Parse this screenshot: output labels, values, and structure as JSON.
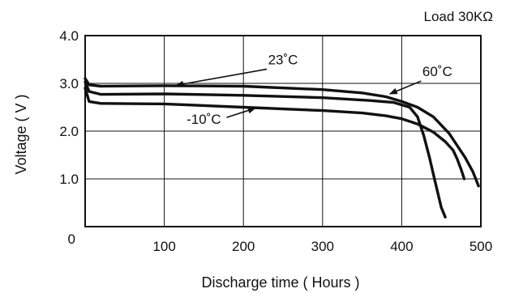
{
  "chart_data": {
    "type": "line",
    "title": "",
    "load_label": "Load 30KΩ",
    "xlabel": "Discharge time ( Hours )",
    "ylabel": "Voltage ( V )",
    "xlim": [
      0,
      500
    ],
    "ylim": [
      0,
      4.0
    ],
    "grid": true,
    "x_ticks": [
      {
        "value": 100,
        "label": "100"
      },
      {
        "value": 200,
        "label": "200"
      },
      {
        "value": 300,
        "label": "300"
      },
      {
        "value": 400,
        "label": "400"
      },
      {
        "value": 500,
        "label": "500"
      }
    ],
    "y_ticks": [
      {
        "value": 0,
        "label": "0"
      },
      {
        "value": 1.0,
        "label": "1.0"
      },
      {
        "value": 2.0,
        "label": "2.0"
      },
      {
        "value": 3.0,
        "label": "3.0"
      },
      {
        "value": 4.0,
        "label": "4.0"
      }
    ],
    "series": [
      {
        "name": "23˚C",
        "x": [
          0,
          5,
          20,
          100,
          200,
          300,
          350,
          380,
          400,
          420,
          440,
          460,
          470,
          480,
          490,
          497
        ],
        "y": [
          3.1,
          2.97,
          2.94,
          2.95,
          2.94,
          2.87,
          2.8,
          2.72,
          2.62,
          2.5,
          2.3,
          1.95,
          1.7,
          1.45,
          1.15,
          0.85
        ]
      },
      {
        "name": "60˚C",
        "x": [
          0,
          5,
          20,
          100,
          200,
          300,
          360,
          390,
          410,
          420,
          428,
          435,
          440,
          445,
          450,
          455
        ],
        "y": [
          3.03,
          2.83,
          2.77,
          2.78,
          2.75,
          2.7,
          2.64,
          2.6,
          2.5,
          2.3,
          1.9,
          1.45,
          1.1,
          0.75,
          0.4,
          0.2
        ]
      },
      {
        "name": "-10˚C",
        "x": [
          0,
          5,
          20,
          100,
          200,
          300,
          350,
          380,
          400,
          420,
          440,
          455,
          465,
          470,
          475,
          479
        ],
        "y": [
          2.9,
          2.62,
          2.58,
          2.57,
          2.5,
          2.43,
          2.38,
          2.32,
          2.26,
          2.15,
          1.98,
          1.78,
          1.6,
          1.42,
          1.2,
          1.0
        ]
      }
    ],
    "annotations": [
      {
        "series": "23˚C",
        "text": "23˚C",
        "label_x": 250,
        "label_y": 3.4,
        "arrow_to_x": 115,
        "arrow_to_y": 2.96
      },
      {
        "series": "60˚C",
        "text": "60˚C",
        "label_x": 445,
        "label_y": 3.15,
        "arrow_to_x": 385,
        "arrow_to_y": 2.78
      },
      {
        "series": "-10˚C",
        "text": "-10˚C",
        "label_x": 150,
        "label_y": 2.15,
        "arrow_to_x": 215,
        "arrow_to_y": 2.48
      }
    ]
  }
}
